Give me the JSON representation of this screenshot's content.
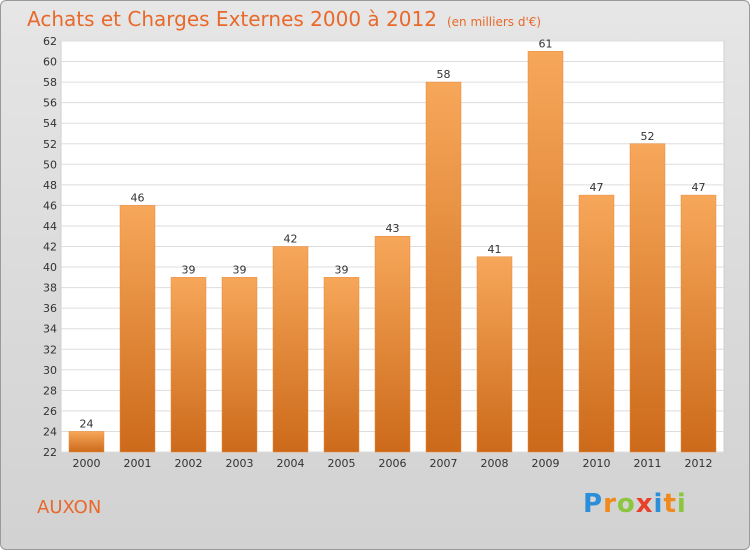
{
  "chart_data": {
    "type": "bar",
    "title": "Achats et Charges Externes 2000 à 2012",
    "subtitle": "(en milliers d'€)",
    "categories": [
      "2000",
      "2001",
      "2002",
      "2003",
      "2004",
      "2005",
      "2006",
      "2007",
      "2008",
      "2009",
      "2010",
      "2011",
      "2012"
    ],
    "values": [
      24,
      46,
      39,
      39,
      42,
      39,
      43,
      58,
      41,
      61,
      47,
      52,
      47
    ],
    "ylim": [
      22,
      62
    ],
    "yticks": [
      22,
      24,
      26,
      28,
      30,
      32,
      34,
      36,
      38,
      40,
      42,
      44,
      46,
      48,
      50,
      52,
      54,
      56,
      58,
      60,
      62
    ],
    "grid": true,
    "bar_color_top": "#f7a75a",
    "bar_color_bottom": "#cc6a1a"
  },
  "commune": "AUXON",
  "logo": {
    "letters": [
      "P",
      "r",
      "o",
      "x",
      "i",
      "t",
      "i"
    ],
    "colors": [
      "#2a8fd8",
      "#f08a1c",
      "#8cc63e",
      "#e8402a",
      "#2a8fd8",
      "#f08a1c",
      "#8cc63e"
    ]
  }
}
